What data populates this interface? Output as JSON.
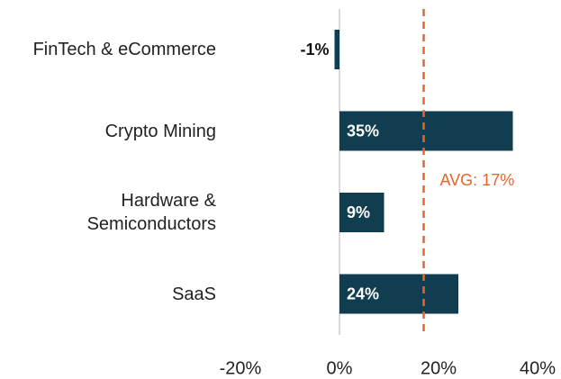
{
  "chart_data": {
    "type": "barh",
    "categories": [
      "FinTech & eCommerce",
      "Crypto Mining",
      "Hardware & Semiconductors",
      "SaaS"
    ],
    "values": [
      -1,
      35,
      9,
      24
    ],
    "value_labels": [
      "-1%",
      "35%",
      "9%",
      "24%"
    ],
    "color": "#103d4f",
    "xlim": [
      -20,
      40
    ],
    "xticks": [
      {
        "value": -20,
        "label": "-20%"
      },
      {
        "value": 0,
        "label": "0%"
      },
      {
        "value": 20,
        "label": "20%"
      },
      {
        "value": 40,
        "label": "40%"
      }
    ],
    "average": {
      "value": 17,
      "label": "AVG: 17%",
      "color": "#e8652a"
    }
  }
}
